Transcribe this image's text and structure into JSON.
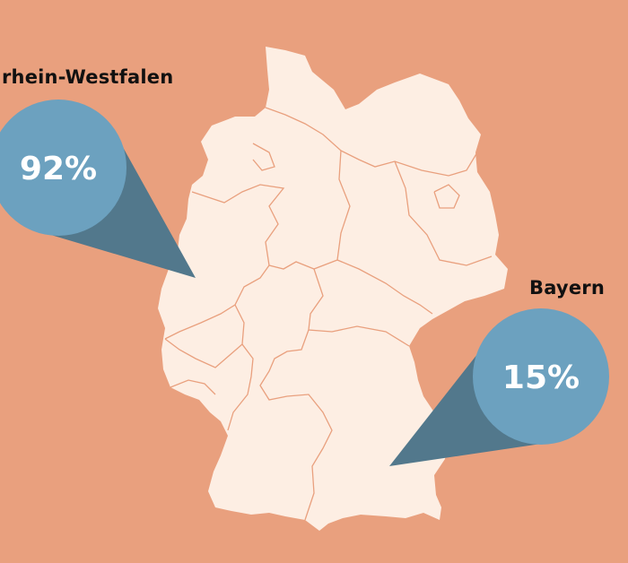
{
  "colors": {
    "background": "#e9a07e",
    "map_fill": "#fdeee3",
    "border_line": "#e9a07e",
    "bubble": "#6ca1bf",
    "bubble_shadow": "#52788c",
    "value_text": "#ffffff"
  },
  "callouts": [
    {
      "region": "rhein-Westfalen",
      "value": "92%"
    },
    {
      "region": "Bayern",
      "value": "15%"
    }
  ]
}
